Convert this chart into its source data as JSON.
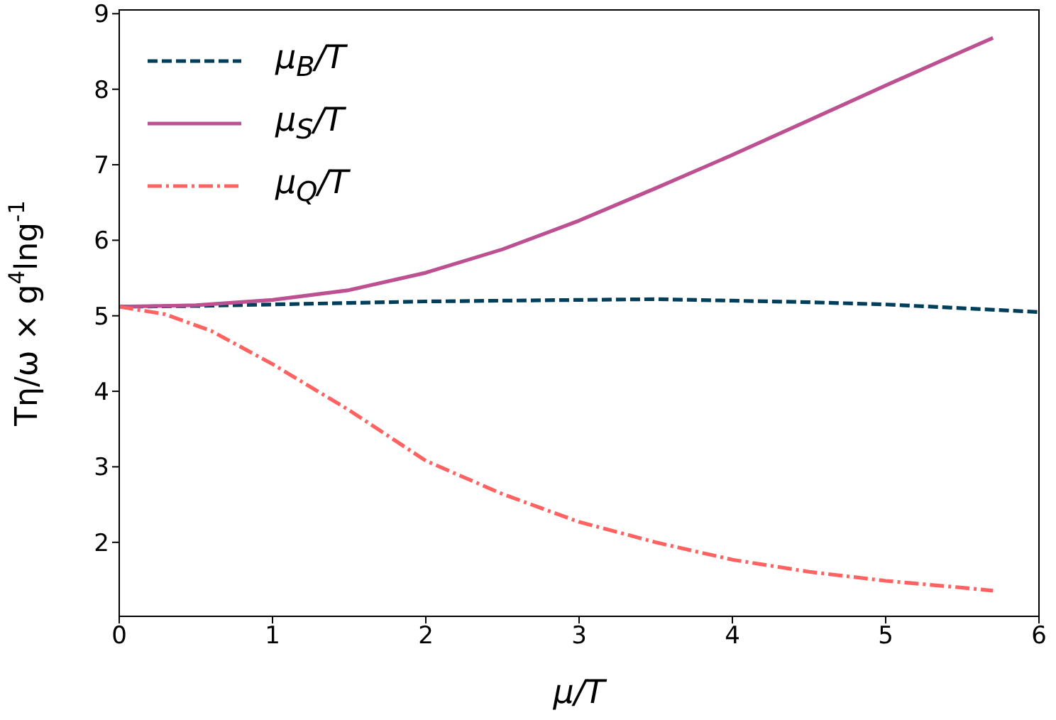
{
  "chart_data": {
    "type": "line",
    "xlabel": "μ/T",
    "ylabel": "Tη/ω × g$^{4}$lng$^{-1}$",
    "xlim": [
      0,
      6
    ],
    "xticks": [
      0,
      1,
      2,
      3,
      4,
      5,
      6
    ],
    "ylim": [
      1.02,
      9.05
    ],
    "yticks": [
      2,
      3,
      4,
      5,
      6,
      7,
      8,
      9
    ],
    "legend": "top left",
    "marker": "none",
    "series": [
      {
        "name": "μ$_{B}$/T",
        "color": "#003f5c",
        "line_style": "dashed",
        "x": [
          0,
          0.5,
          1,
          1.5,
          2,
          2.5,
          3,
          3.5,
          4,
          4.5,
          5,
          5.5,
          6
        ],
        "values": [
          5.12,
          5.13,
          5.15,
          5.17,
          5.19,
          5.2,
          5.21,
          5.22,
          5.2,
          5.18,
          5.15,
          5.1,
          5.05
        ]
      },
      {
        "name": "μ$_{S}$/T",
        "color": "#bc5090",
        "line_style": "solid",
        "x": [
          0,
          0.5,
          1,
          1.5,
          2,
          2.5,
          3,
          3.5,
          4,
          4.5,
          5,
          5.5,
          5.7
        ],
        "values": [
          5.12,
          5.14,
          5.21,
          5.34,
          5.57,
          5.88,
          6.26,
          6.69,
          7.13,
          7.59,
          8.05,
          8.5,
          8.68
        ]
      },
      {
        "name": "μ$_{Q}$/T",
        "color": "#ff6361",
        "line_style": "dashdot",
        "x": [
          0,
          0.3,
          0.6,
          1,
          1.5,
          2,
          2.5,
          3,
          3.5,
          4,
          4.5,
          5,
          5.5,
          5.7
        ],
        "values": [
          5.12,
          5.02,
          4.8,
          4.36,
          3.75,
          3.08,
          2.64,
          2.27,
          2.0,
          1.77,
          1.61,
          1.49,
          1.4,
          1.36
        ]
      }
    ]
  }
}
